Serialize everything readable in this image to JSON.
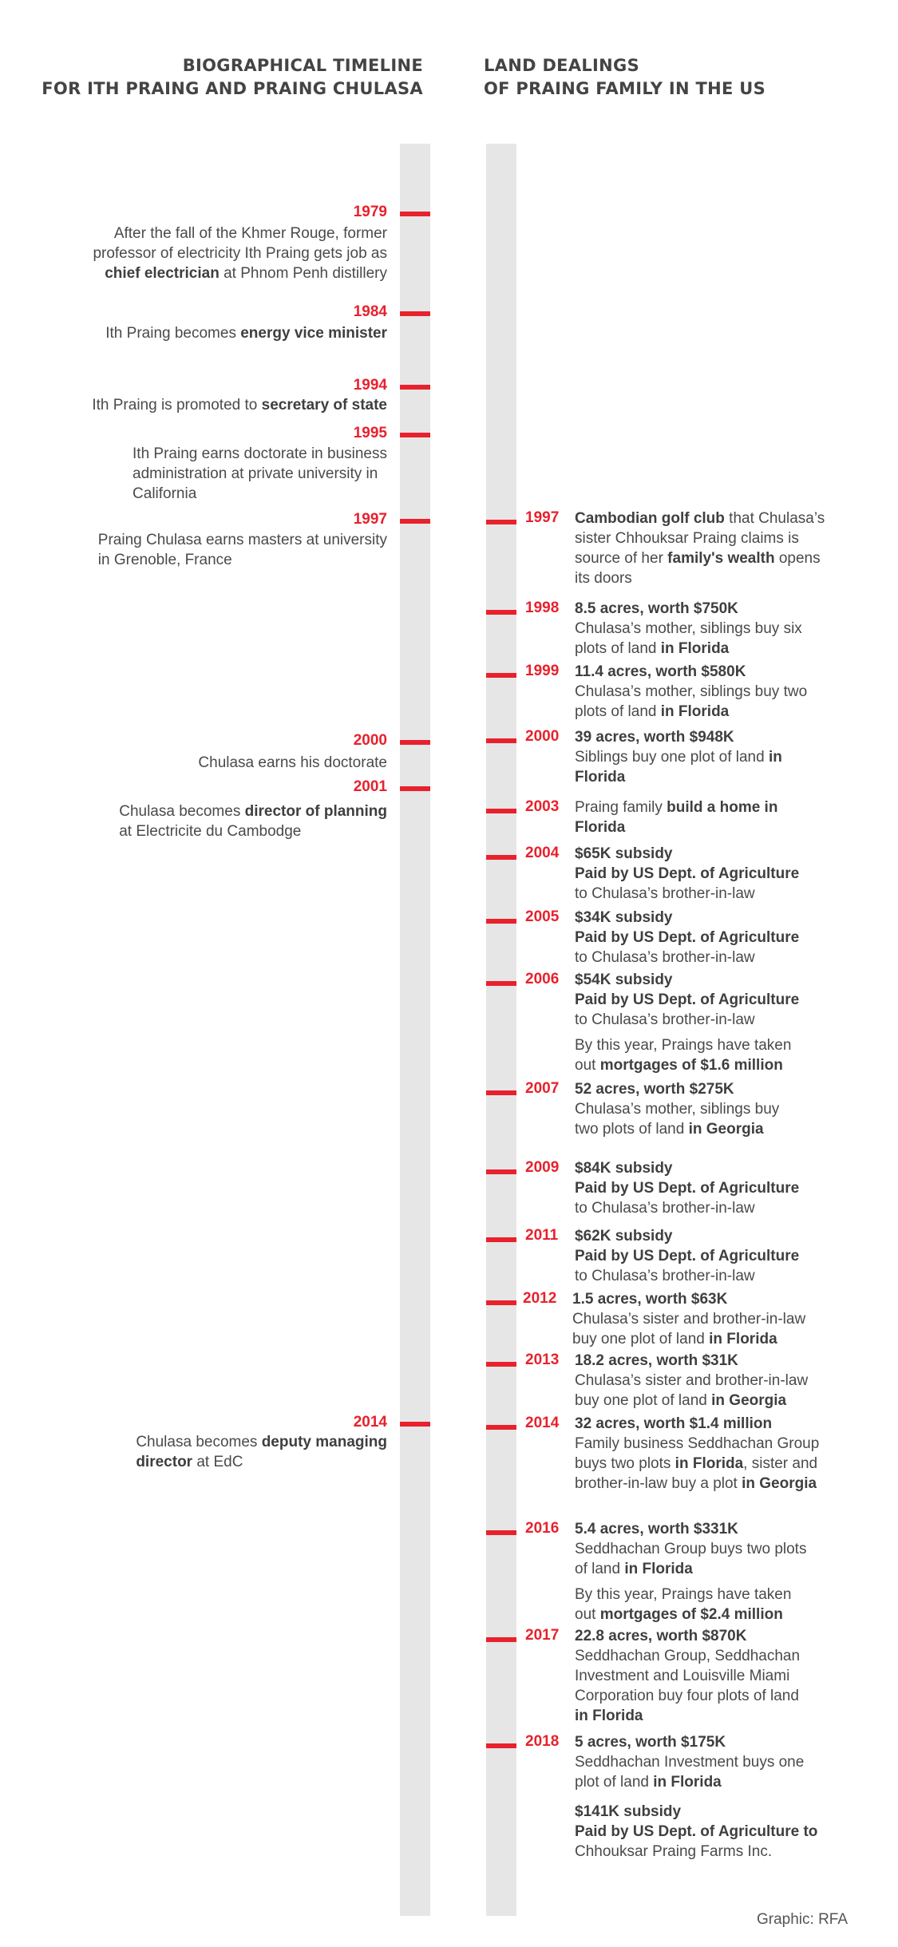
{
  "header": {
    "left_line1": "BIOGRAPHICAL TIMELINE",
    "left_line2": "FOR ITH PRAING AND PRAING CHULASA",
    "right_line1": "LAND DEALINGS",
    "right_line2": "OF PRAING FAMILY IN THE US"
  },
  "left_events": [
    {
      "year": "1979",
      "lines": [
        [
          "After the fall of the Khmer Rouge, former"
        ],
        [
          "professor of electricity Ith Praing gets job as"
        ],
        [
          {
            "b": "chief electrician"
          },
          " at Phnom Penh distillery"
        ]
      ]
    },
    {
      "year": "1984",
      "lines": [
        [
          "Ith Praing becomes ",
          {
            "b": "energy vice minister"
          }
        ]
      ]
    },
    {
      "year": "1994",
      "lines": [
        [
          "Ith Praing is promoted to ",
          {
            "b": "secretary of state"
          }
        ]
      ]
    },
    {
      "year": "1995",
      "lines": [
        [
          "Ith Praing earns doctorate in business"
        ],
        [
          "administration at private university in"
        ],
        [
          "California"
        ]
      ]
    },
    {
      "year": "1997",
      "lines": [
        [
          "Praing Chulasa earns masters at university"
        ],
        [
          "in Grenoble, France"
        ]
      ]
    },
    {
      "year": "2000",
      "lines": [
        [
          "Chulasa earns his doctorate"
        ]
      ]
    },
    {
      "year": "2001",
      "lines": [
        [
          "Chulasa becomes ",
          {
            "b": "director of planning"
          }
        ],
        [
          "at Electricite du Cambodge"
        ]
      ]
    },
    {
      "year": "2014",
      "lines": [
        [
          "Chulasa becomes ",
          {
            "b": "deputy managing"
          }
        ],
        [
          {
            "b": "director"
          },
          " at EdC"
        ]
      ]
    }
  ],
  "right_events": [
    {
      "year": "1997",
      "lines": [
        [
          {
            "b": "Cambodian golf club"
          },
          " that Chulasa’s"
        ],
        [
          "sister Chhouksar Praing claims is"
        ],
        [
          "source of her ",
          {
            "b": "family's wealth"
          },
          " opens"
        ],
        [
          "its doors"
        ]
      ]
    },
    {
      "year": "1998",
      "lines": [
        [
          {
            "b": "8.5 acres, worth $750K"
          }
        ],
        [
          "Chulasa’s mother, siblings buy six"
        ],
        [
          "plots of land ",
          {
            "b": "in Florida"
          }
        ]
      ]
    },
    {
      "year": "1999",
      "lines": [
        [
          {
            "b": "11.4 acres, worth $580K"
          }
        ],
        [
          "Chulasa’s mother, siblings buy two"
        ],
        [
          "plots of land ",
          {
            "b": "in Florida"
          }
        ]
      ]
    },
    {
      "year": "2000",
      "lines": [
        [
          {
            "b": "39 acres, worth $948K"
          }
        ],
        [
          "Siblings buy one plot of land ",
          {
            "b": "in"
          }
        ],
        [
          {
            "b": "Florida"
          }
        ]
      ]
    },
    {
      "year": "2003",
      "lines": [
        [
          "Praing family ",
          {
            "b": "build a home in"
          }
        ],
        [
          {
            "b": "Florida"
          }
        ]
      ]
    },
    {
      "year": "2004",
      "lines": [
        [
          {
            "b": "$65K subsidy"
          }
        ],
        [
          {
            "b": "Paid by US Dept. of Agriculture"
          }
        ],
        [
          "to Chulasa’s brother-in-law"
        ]
      ]
    },
    {
      "year": "2005",
      "lines": [
        [
          {
            "b": "$34K subsidy"
          }
        ],
        [
          {
            "b": "Paid by US Dept. of Agriculture"
          }
        ],
        [
          "to Chulasa’s brother-in-law"
        ]
      ]
    },
    {
      "year": "2006",
      "lines": [
        [
          {
            "b": "$54K subsidy"
          }
        ],
        [
          {
            "b": "Paid by US Dept. of Agriculture"
          }
        ],
        [
          "to Chulasa’s brother-in-law"
        ]
      ]
    },
    {
      "year": "",
      "lines": [
        [
          "By this year, Praings have taken"
        ],
        [
          "out ",
          {
            "b": "mortgages of $1.6 million"
          }
        ]
      ]
    },
    {
      "year": "2007",
      "lines": [
        [
          {
            "b": "52 acres, worth $275K"
          }
        ],
        [
          "Chulasa’s mother, siblings buy"
        ],
        [
          "two plots of land ",
          {
            "b": "in Georgia"
          }
        ]
      ]
    },
    {
      "year": "2009",
      "lines": [
        [
          {
            "b": "$84K subsidy"
          }
        ],
        [
          {
            "b": "Paid by US Dept. of Agriculture"
          }
        ],
        [
          "to Chulasa’s brother-in-law"
        ]
      ]
    },
    {
      "year": "2011",
      "lines": [
        [
          {
            "b": "$62K subsidy"
          }
        ],
        [
          {
            "b": "Paid by US Dept. of Agriculture"
          }
        ],
        [
          "to Chulasa’s brother-in-law"
        ]
      ]
    },
    {
      "year": "2012",
      "lines": [
        [
          {
            "b": "1.5 acres, worth $63K"
          }
        ],
        [
          "Chulasa’s sister and brother-in-law"
        ],
        [
          "buy one plot of land ",
          {
            "b": "in Florida"
          }
        ]
      ]
    },
    {
      "year": "2013",
      "lines": [
        [
          {
            "b": "18.2 acres, worth $31K"
          }
        ],
        [
          "Chulasa’s sister and brother-in-law"
        ],
        [
          "buy one plot of land ",
          {
            "b": "in Georgia"
          }
        ]
      ]
    },
    {
      "year": "2014",
      "lines": [
        [
          {
            "b": "32 acres, worth $1.4 million"
          }
        ],
        [
          "Family business Seddhachan Group"
        ],
        [
          "buys two plots ",
          {
            "b": "in Florida"
          },
          ", sister and"
        ],
        [
          "brother-in-law buy a plot ",
          {
            "b": "in Georgia"
          }
        ]
      ]
    },
    {
      "year": "2016",
      "lines": [
        [
          {
            "b": "5.4 acres, worth $331K"
          }
        ],
        [
          "Seddhachan Group buys two plots"
        ],
        [
          "of land ",
          {
            "b": "in Florida"
          }
        ]
      ]
    },
    {
      "year": "",
      "lines": [
        [
          "By this year, Praings have taken"
        ],
        [
          "out ",
          {
            "b": "mortgages of $2.4 million"
          }
        ]
      ]
    },
    {
      "year": "2017",
      "lines": [
        [
          {
            "b": "22.8 acres, worth $870K"
          }
        ],
        [
          "Seddhachan Group, Seddhachan"
        ],
        [
          "Investment and Louisville Miami"
        ],
        [
          "Corporation buy four plots of land"
        ],
        [
          {
            "b": "in Florida"
          }
        ]
      ]
    },
    {
      "year": "2018",
      "lines": [
        [
          {
            "b": "5 acres, worth $175K"
          }
        ],
        [
          "Seddhachan Investment buys one"
        ],
        [
          "plot of land ",
          {
            "b": "in Florida"
          }
        ]
      ]
    },
    {
      "year": "",
      "lines": [
        [
          {
            "b": "$141K subsidy"
          }
        ],
        [
          {
            "b": "Paid by US Dept. of Agriculture to"
          }
        ],
        [
          "Chhouksar Praing Farms Inc."
        ]
      ]
    }
  ],
  "credit": "Graphic: RFA"
}
